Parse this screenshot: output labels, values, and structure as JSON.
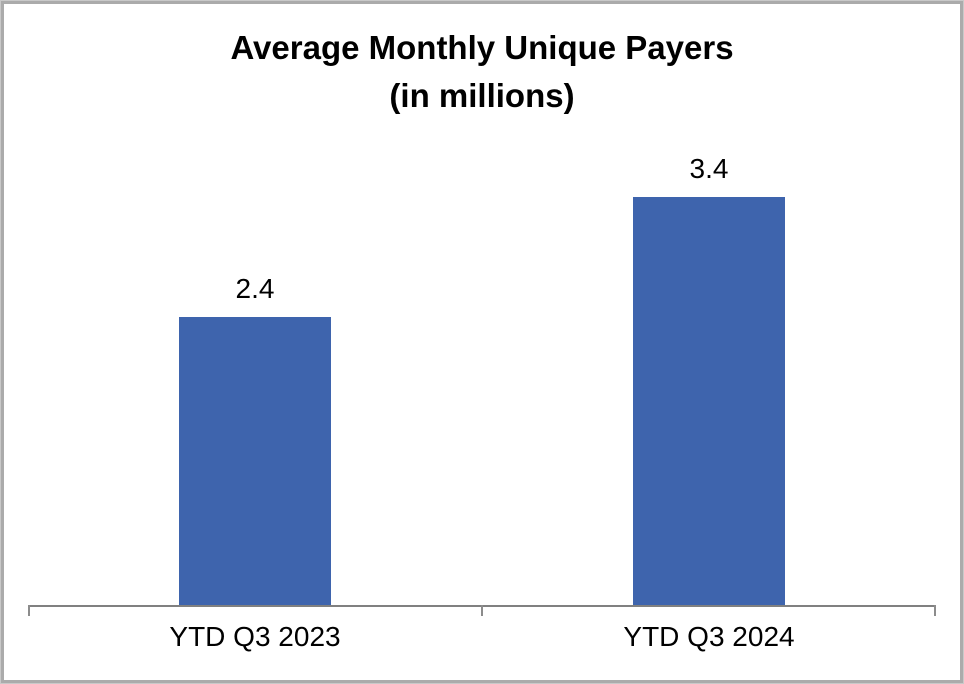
{
  "chart_data": {
    "type": "bar",
    "title": "Average Monthly Unique Payers",
    "subtitle": "(in millions)",
    "categories": [
      "YTD Q3 2023",
      "YTD Q3 2024"
    ],
    "values": [
      2.4,
      3.4
    ],
    "data_labels": [
      "2.4",
      "3.4"
    ],
    "ylim": [
      0,
      4
    ],
    "grid": false,
    "legend_position": "none",
    "bar_color": "#3E64AD",
    "axis_color": "#808080",
    "text_color": "#000000",
    "frame_color": "#ABABAB"
  }
}
